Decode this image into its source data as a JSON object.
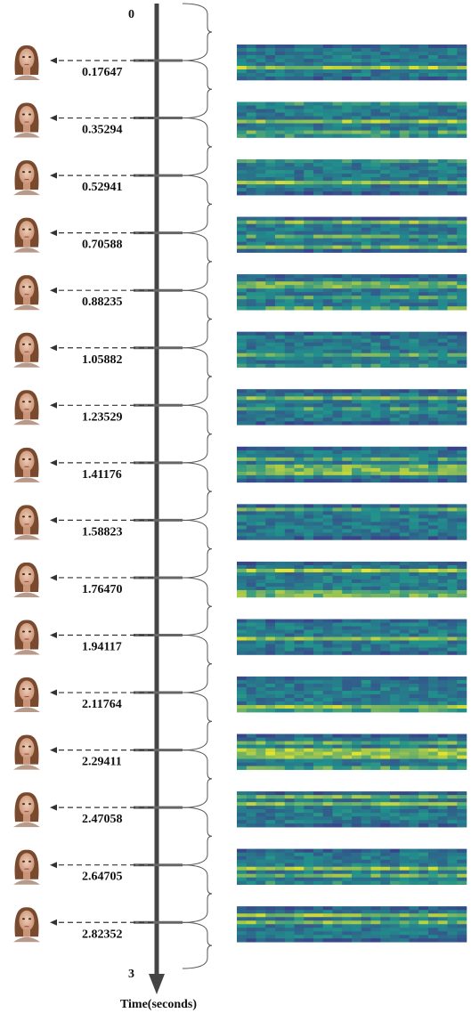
{
  "timeline": {
    "start_label": "0",
    "end_label": "3",
    "axis_label": "Time(seconds)",
    "axis_color": "#444444",
    "frame_times": [
      "0.17647",
      "0.35294",
      "0.52941",
      "0.70588",
      "0.88235",
      "1.05882",
      "1.23529",
      "1.41176",
      "1.58823",
      "1.76470",
      "1.94117",
      "2.11764",
      "2.29411",
      "2.47058",
      "2.64705",
      "2.82352"
    ]
  },
  "icons": {
    "face": "face-icon",
    "arrow": "dashed-arrow-icon",
    "brace": "curly-brace-icon"
  },
  "colors": {
    "heatmap_low": "#3b3d8a",
    "heatmap_mid": "#21918c",
    "heatmap_high": "#e8e42a",
    "face_skin": "#e2b9a0",
    "face_hair": "#7a4a2e"
  }
}
